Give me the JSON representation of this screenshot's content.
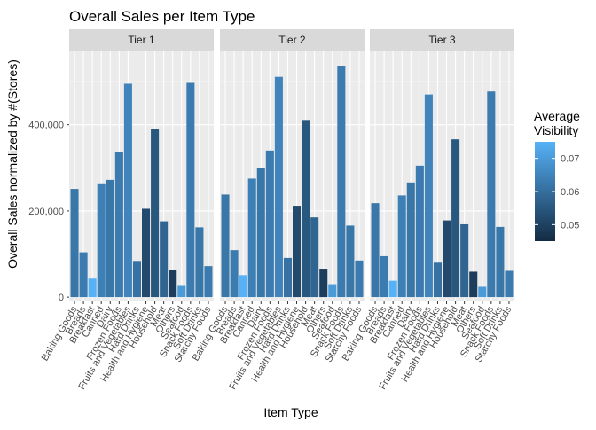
{
  "chart_data": {
    "type": "bar",
    "title": "Overall Sales per Item Type",
    "xlabel": "Item Type",
    "ylabel": "Overall Sales normalized by #(Stores)",
    "ylim": [
      -10000,
      570000
    ],
    "yticks": [
      0,
      200000,
      400000
    ],
    "ytick_labels": [
      "0",
      "200,000",
      "400,000"
    ],
    "grid": true,
    "legend": {
      "title": "Average\nVisibility",
      "placement": "right",
      "range": [
        0.045,
        0.075
      ],
      "ticks": [
        0.05,
        0.06,
        0.07
      ],
      "tick_labels": [
        "0.05",
        "0.06",
        "0.07"
      ],
      "low_color": "#132b43",
      "high_color": "#56b1f7"
    },
    "categories": [
      "Baking Goods",
      "Breads",
      "Breakfast",
      "Canned",
      "Dairy",
      "Frozen Foods",
      "Fruits and Vegetables",
      "Hard Drinks",
      "Health and Hygiene",
      "Household",
      "Meat",
      "Others",
      "Seafood",
      "Snack Foods",
      "Soft Drinks",
      "Starchy Foods"
    ],
    "panels": [
      {
        "name": "Tier 1",
        "values": [
          251000,
          104000,
          43000,
          264000,
          272000,
          336000,
          495000,
          84000,
          205000,
          390000,
          176000,
          64000,
          26000,
          497000,
          162000,
          72000
        ],
        "visibility": [
          0.062,
          0.063,
          0.075,
          0.064,
          0.062,
          0.063,
          0.065,
          0.061,
          0.052,
          0.055,
          0.058,
          0.049,
          0.07,
          0.063,
          0.062,
          0.063
        ]
      },
      {
        "name": "Tier 2",
        "values": [
          238000,
          109000,
          51000,
          275000,
          299000,
          340000,
          511000,
          91000,
          212000,
          411000,
          185000,
          66000,
          30000,
          537000,
          166000,
          85000
        ],
        "visibility": [
          0.062,
          0.063,
          0.075,
          0.064,
          0.062,
          0.063,
          0.065,
          0.061,
          0.052,
          0.055,
          0.058,
          0.049,
          0.07,
          0.063,
          0.062,
          0.063
        ]
      },
      {
        "name": "Tier 3",
        "values": [
          218000,
          95000,
          38000,
          236000,
          266000,
          305000,
          470000,
          80000,
          178000,
          366000,
          169000,
          59000,
          24000,
          477000,
          163000,
          61000
        ],
        "visibility": [
          0.062,
          0.063,
          0.075,
          0.064,
          0.062,
          0.063,
          0.065,
          0.061,
          0.052,
          0.055,
          0.058,
          0.049,
          0.07,
          0.063,
          0.062,
          0.063
        ]
      }
    ]
  }
}
